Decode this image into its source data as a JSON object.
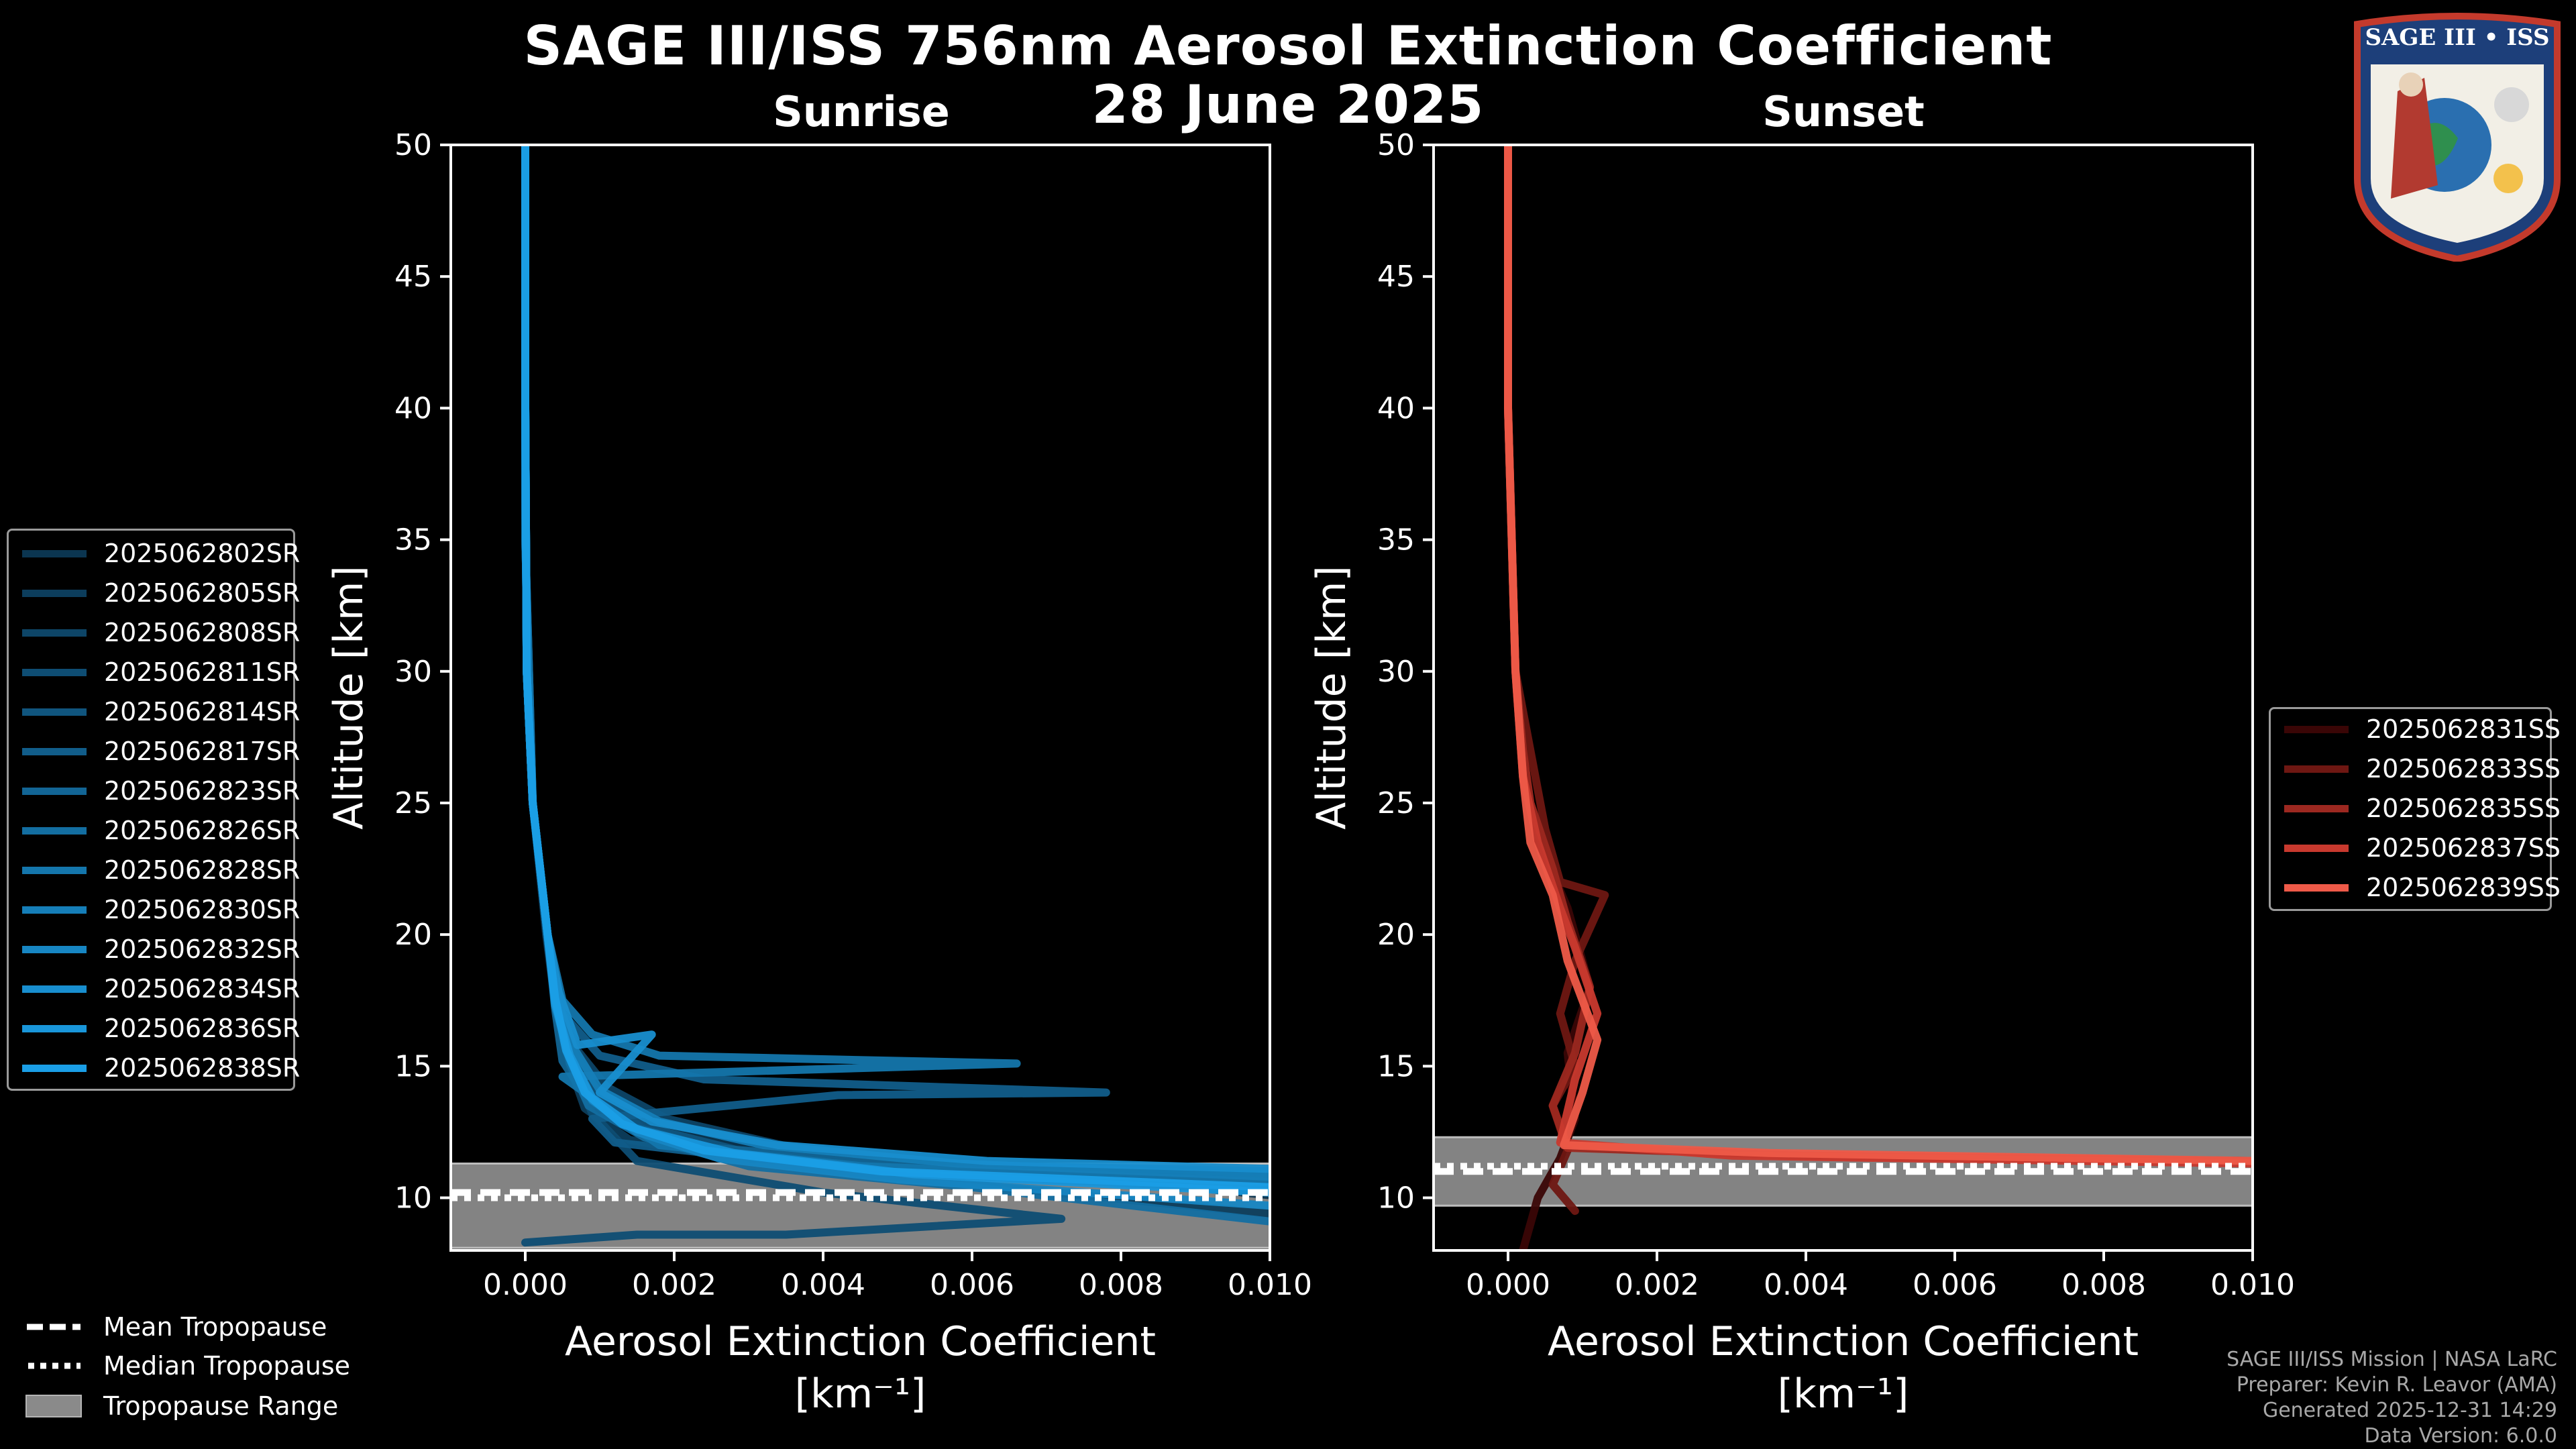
{
  "title": "SAGE III/ISS 756nm Aerosol Extinction Coefficient",
  "date": "28 June 2025",
  "badge_text": "SAGE III • ISS",
  "credits": [
    "SAGE III/ISS Mission | NASA LaRC",
    "Preparer: Kevin R. Leavor (AMA)",
    "Generated 2025-12-31 14:29",
    "Data Version: 6.0.0"
  ],
  "legend_common": {
    "mean": "Mean Tropopause",
    "median": "Median Tropopause",
    "range": "Tropopause Range"
  },
  "colors": {
    "sunrise_start": "#0b3550",
    "sunrise_end": "#1a9ee6",
    "sunset": [
      "#3a0606",
      "#6e1712",
      "#9c2820",
      "#c8392e",
      "#ee5a48"
    ],
    "tropopause_band": "#8a8a8a"
  },
  "chart_data": [
    {
      "type": "line",
      "subtitle": "Sunrise",
      "xlabel": "Aerosol Extinction Coefficient",
      "xunits": "[km⁻¹]",
      "ylabel": "Altitude [km]",
      "xlim": [
        -0.001,
        0.01
      ],
      "ylim": [
        8,
        50
      ],
      "xticks": [
        0.0,
        0.002,
        0.004,
        0.006,
        0.008,
        0.01
      ],
      "xtick_labels": [
        "0.000",
        "0.002",
        "0.004",
        "0.006",
        "0.008",
        "0.010"
      ],
      "yticks": [
        10,
        15,
        20,
        25,
        30,
        35,
        40,
        45,
        50
      ],
      "ytick_labels": [
        "10",
        "15",
        "20",
        "25",
        "30",
        "35",
        "40",
        "45",
        "50"
      ],
      "tropopause": {
        "mean": 10.2,
        "median": 10.0,
        "range": [
          8.1,
          11.3
        ]
      },
      "series": [
        {
          "name": "2025062802SR",
          "x": [
            0.01,
            0.0075,
            0.004,
            0.0016,
            0.0009,
            0.0006,
            0.0004,
            0.00028,
            0.0001,
            2e-05,
            0.0,
            0.0
          ],
          "y": [
            10.1,
            10.8,
            11.6,
            12.6,
            13.8,
            15.4,
            17.4,
            20.0,
            25.0,
            30.0,
            40.0,
            50.0
          ]
        },
        {
          "name": "2025062805SR",
          "x": [
            0.01,
            0.006,
            0.003,
            0.0014,
            0.0008,
            0.0006,
            0.00042,
            0.0003,
            0.0001,
            2e-05,
            0.0,
            0.0
          ],
          "y": [
            9.4,
            10.5,
            11.4,
            12.2,
            13.4,
            15.0,
            17.0,
            20.0,
            25.0,
            30.0,
            40.0,
            50.0
          ]
        },
        {
          "name": "2025062808SR",
          "x": [
            0.01,
            0.0065,
            0.0036,
            0.0019,
            0.0011,
            0.0007,
            0.00045,
            0.0003,
            0.0001,
            2e-05,
            0.0,
            0.0
          ],
          "y": [
            10.6,
            11.1,
            11.9,
            13.0,
            14.2,
            15.6,
            17.6,
            20.0,
            25.0,
            30.0,
            40.0,
            50.0
          ]
        },
        {
          "name": "2025062811SR",
          "x": [
            0.0,
            0.0015,
            0.0035,
            0.0072,
            0.004,
            0.0015,
            0.0009,
            0.0005,
            0.0003,
            0.0001,
            0.0,
            0.0
          ],
          "y": [
            8.3,
            8.6,
            8.6,
            9.2,
            10.2,
            11.4,
            13.2,
            16.0,
            20.0,
            25.0,
            35.0,
            50.0
          ]
        },
        {
          "name": "2025062814SR",
          "x": [
            0.01,
            0.0055,
            0.003,
            0.0016,
            0.001,
            0.00065,
            0.0004,
            0.00029,
            0.0001,
            2e-05,
            0.0,
            0.0
          ],
          "y": [
            10.3,
            10.9,
            11.7,
            12.7,
            13.9,
            15.5,
            17.5,
            20.0,
            25.0,
            30.0,
            40.0,
            50.0
          ]
        },
        {
          "name": "2025062817SR",
          "x": [
            0.01,
            0.004,
            0.0012,
            0.0009,
            0.0042,
            0.0078,
            0.0024,
            0.001,
            0.0005,
            0.0003,
            0.0001,
            0.0,
            0.0
          ],
          "y": [
            10.9,
            11.2,
            12.1,
            13.0,
            13.9,
            14.0,
            14.5,
            15.4,
            17.0,
            20.0,
            25.0,
            35.0,
            50.0
          ]
        },
        {
          "name": "2025062823SR",
          "x": [
            0.01,
            0.005,
            0.0025,
            0.0013,
            0.0008,
            0.0005,
            0.0004,
            0.0003,
            0.0001,
            2e-05,
            0.0,
            0.0
          ],
          "y": [
            11.0,
            11.3,
            11.9,
            12.8,
            13.9,
            15.2,
            17.2,
            20.0,
            25.0,
            30.0,
            40.0,
            50.0
          ]
        },
        {
          "name": "2025062826SR",
          "x": [
            0.01,
            0.006,
            0.003,
            0.0016,
            0.00085,
            0.0006,
            0.00045,
            0.0003,
            0.0001,
            2e-05,
            0.0,
            0.0
          ],
          "y": [
            9.1,
            10.4,
            11.2,
            12.3,
            13.5,
            15.1,
            17.1,
            20.0,
            25.0,
            30.0,
            40.0,
            50.0
          ]
        },
        {
          "name": "2025062828SR",
          "x": [
            0.01,
            0.0045,
            0.0018,
            0.0012,
            0.0005,
            0.0066,
            0.0018,
            0.0009,
            0.0005,
            0.0003,
            0.0001,
            0.0,
            0.0
          ],
          "y": [
            10.6,
            11.2,
            12.0,
            13.2,
            14.6,
            15.1,
            15.4,
            16.2,
            17.5,
            20.0,
            25.0,
            35.0,
            50.0
          ]
        },
        {
          "name": "2025062830SR",
          "x": [
            0.01,
            0.0058,
            0.0032,
            0.0018,
            0.001,
            0.00065,
            0.00042,
            0.0003,
            0.0001,
            2e-05,
            0.0,
            0.0
          ],
          "y": [
            10.8,
            11.3,
            12.0,
            12.9,
            14.1,
            15.7,
            17.6,
            20.0,
            25.0,
            30.0,
            40.0,
            50.0
          ]
        },
        {
          "name": "2025062832SR",
          "x": [
            0.01,
            0.005,
            0.0026,
            0.0015,
            0.0009,
            0.0006,
            0.0004,
            0.0003,
            0.0001,
            2e-05,
            0.0,
            0.0
          ],
          "y": [
            9.7,
            10.7,
            11.5,
            12.5,
            13.7,
            15.3,
            17.3,
            20.0,
            25.0,
            30.0,
            40.0,
            50.0
          ]
        },
        {
          "name": "2025062834SR",
          "x": [
            0.01,
            0.0062,
            0.0034,
            0.0017,
            0.001,
            0.0017,
            0.0007,
            0.00045,
            0.0003,
            0.0001,
            2e-05,
            0.0,
            0.0
          ],
          "y": [
            11.1,
            11.4,
            12.0,
            12.9,
            14.0,
            16.2,
            15.8,
            17.8,
            20.0,
            25.0,
            30.0,
            40.0,
            50.0
          ]
        },
        {
          "name": "2025062836SR",
          "x": [
            0.01,
            0.0052,
            0.0028,
            0.0015,
            0.0009,
            0.0006,
            0.0004,
            0.0003,
            0.0001,
            2e-05,
            0.0,
            0.0
          ],
          "y": [
            10.2,
            10.9,
            11.7,
            12.6,
            13.8,
            15.4,
            17.4,
            20.0,
            25.0,
            30.0,
            40.0,
            50.0
          ]
        },
        {
          "name": "2025062838SR",
          "x": [
            0.01,
            0.0048,
            0.0024,
            0.0013,
            0.0008,
            0.00055,
            0.0004,
            0.0003,
            0.0001,
            2e-05,
            0.0,
            0.0
          ],
          "y": [
            10.4,
            11.0,
            11.8,
            12.8,
            14.0,
            15.6,
            17.6,
            20.0,
            25.0,
            30.0,
            40.0,
            50.0
          ]
        }
      ]
    },
    {
      "type": "line",
      "subtitle": "Sunset",
      "xlabel": "Aerosol Extinction Coefficient",
      "xunits": "[km⁻¹]",
      "ylabel": "Altitude [km]",
      "xlim": [
        -0.001,
        0.01
      ],
      "ylim": [
        8,
        50
      ],
      "xticks": [
        0.0,
        0.002,
        0.004,
        0.006,
        0.008,
        0.01
      ],
      "xtick_labels": [
        "0.000",
        "0.002",
        "0.004",
        "0.006",
        "0.008",
        "0.010"
      ],
      "yticks": [
        10,
        15,
        20,
        25,
        30,
        35,
        40,
        45,
        50
      ],
      "ytick_labels": [
        "10",
        "15",
        "20",
        "25",
        "30",
        "35",
        "40",
        "45",
        "50"
      ],
      "tropopause": {
        "mean": 11.0,
        "median": 11.2,
        "range": [
          9.7,
          12.3
        ]
      },
      "series": [
        {
          "name": "2025062831SS",
          "x": [
            0.0002,
            0.0004,
            0.0007,
            0.0009,
            0.0008,
            0.0011,
            0.0008,
            0.0005,
            0.0003,
            0.0002,
            0.0001,
            0.0,
            0.0
          ],
          "y": [
            8.0,
            10.0,
            11.5,
            13.0,
            15.5,
            18.0,
            21.0,
            23.0,
            25.0,
            27.0,
            30.0,
            40.0,
            50.0
          ]
        },
        {
          "name": "2025062833SS",
          "x": [
            0.0009,
            0.0006,
            0.0008,
            0.0006,
            0.0009,
            0.0007,
            0.0009,
            0.0013,
            0.0007,
            0.0005,
            0.0003,
            0.0001,
            0.0,
            0.0
          ],
          "y": [
            9.5,
            10.5,
            11.8,
            13.5,
            15.0,
            17.0,
            19.0,
            21.5,
            22.0,
            24.0,
            27.0,
            30.0,
            40.0,
            50.0
          ]
        },
        {
          "name": "2025062835SS",
          "x": [
            0.01,
            0.004,
            0.0008,
            0.0006,
            0.0009,
            0.0011,
            0.0008,
            0.0006,
            0.0003,
            0.0002,
            0.0001,
            0.0,
            0.0
          ],
          "y": [
            11.4,
            11.6,
            11.9,
            13.5,
            15.5,
            18.0,
            20.5,
            22.5,
            25.0,
            27.0,
            30.0,
            40.0,
            50.0
          ]
        },
        {
          "name": "2025062837SS",
          "x": [
            0.01,
            0.003,
            0.0007,
            0.0009,
            0.0012,
            0.0009,
            0.0007,
            0.0004,
            0.0002,
            0.0001,
            0.0,
            0.0
          ],
          "y": [
            11.3,
            11.6,
            12.1,
            14.5,
            17.0,
            19.5,
            21.0,
            23.5,
            26.0,
            30.0,
            40.0,
            50.0
          ]
        },
        {
          "name": "2025062839SS",
          "x": [
            0.01,
            0.0035,
            0.00075,
            0.001,
            0.0012,
            0.0008,
            0.0006,
            0.0003,
            0.0002,
            0.0001,
            0.0,
            0.0
          ],
          "y": [
            11.4,
            11.7,
            12.0,
            14.0,
            16.0,
            19.0,
            21.5,
            23.5,
            26.0,
            30.0,
            40.0,
            50.0
          ]
        }
      ]
    }
  ]
}
